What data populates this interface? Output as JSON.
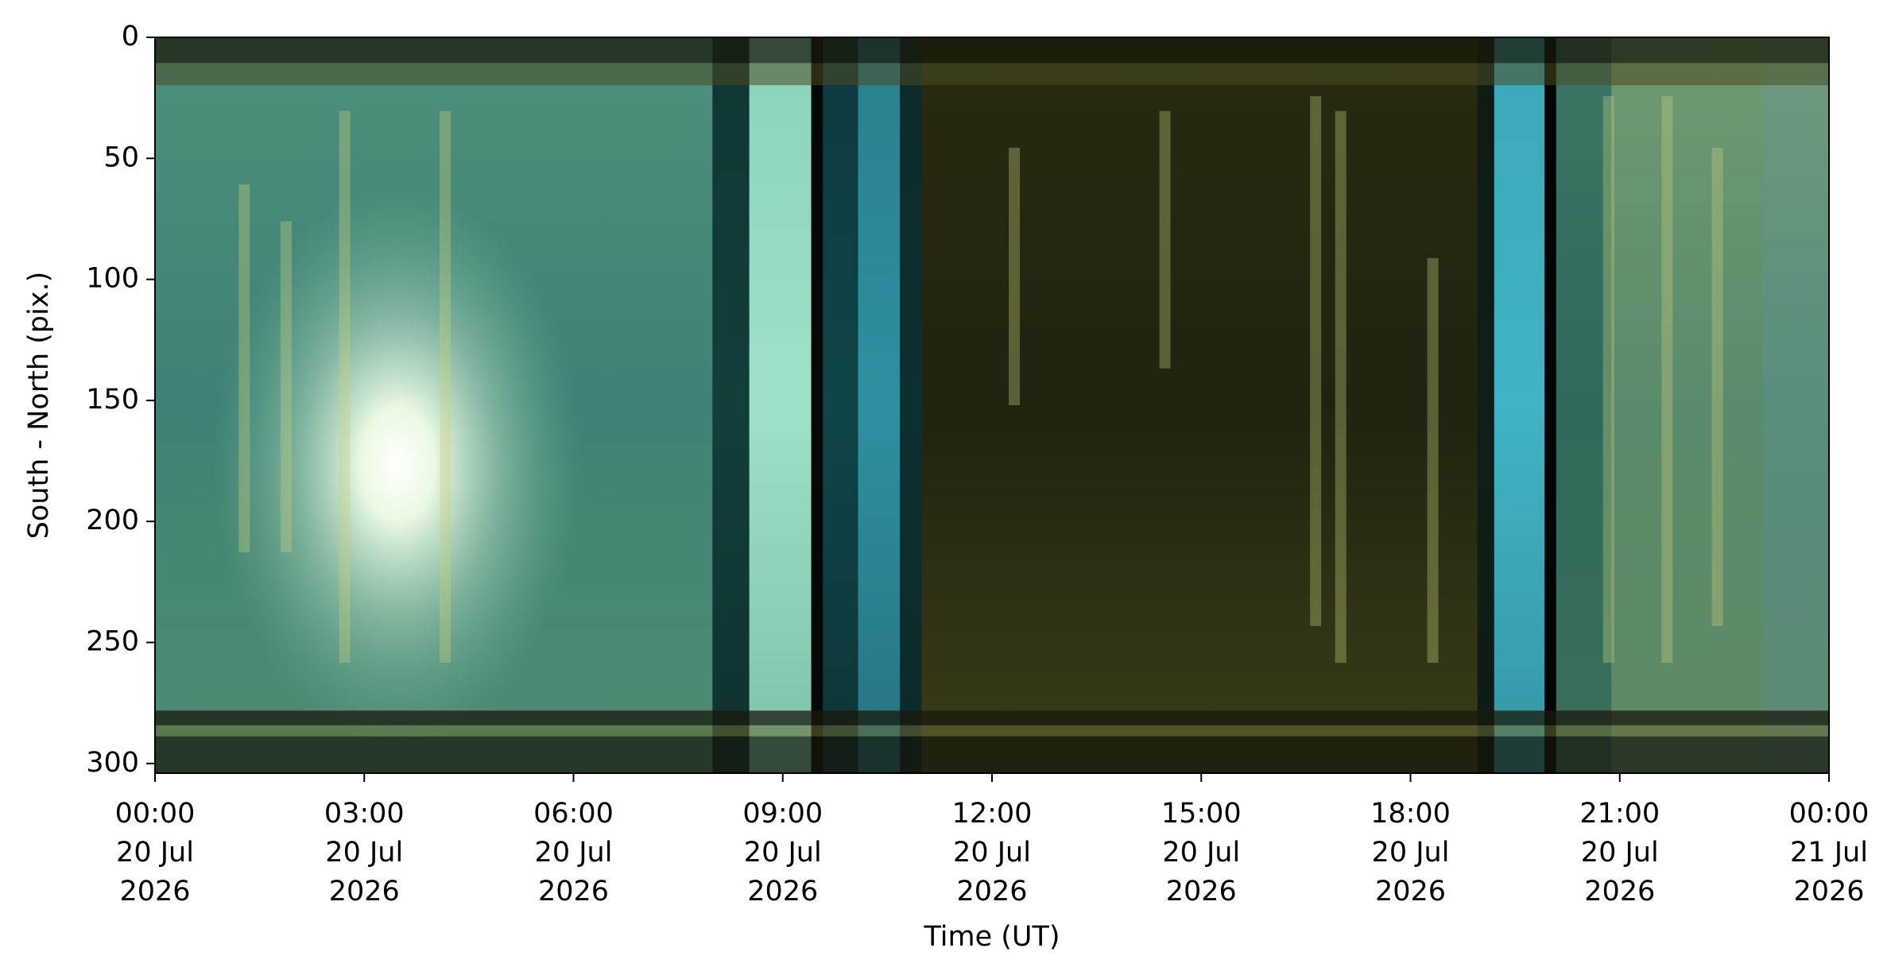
{
  "chart_data": {
    "type": "keogram",
    "xlabel": "Time (UT)",
    "ylabel": "South - North (pix.)",
    "xlim": [
      "2026-07-20T00:00",
      "2026-07-21T00:00"
    ],
    "xticks": [
      {
        "value": "2026-07-20T00:00",
        "label": [
          "00:00",
          "20 Jul",
          "2026"
        ]
      },
      {
        "value": "2026-07-20T03:00",
        "label": [
          "03:00",
          "20 Jul",
          "2026"
        ]
      },
      {
        "value": "2026-07-20T06:00",
        "label": [
          "06:00",
          "20 Jul",
          "2026"
        ]
      },
      {
        "value": "2026-07-20T09:00",
        "label": [
          "09:00",
          "20 Jul",
          "2026"
        ]
      },
      {
        "value": "2026-07-20T12:00",
        "label": [
          "12:00",
          "20 Jul",
          "2026"
        ]
      },
      {
        "value": "2026-07-20T15:00",
        "label": [
          "15:00",
          "20 Jul",
          "2026"
        ]
      },
      {
        "value": "2026-07-20T18:00",
        "label": [
          "18:00",
          "20 Jul",
          "2026"
        ]
      },
      {
        "value": "2026-07-20T21:00",
        "label": [
          "21:00",
          "20 Jul",
          "2026"
        ]
      },
      {
        "value": "2026-07-21T00:00",
        "label": [
          "00:00",
          "21 Jul",
          "2026"
        ]
      }
    ],
    "ylim": [
      304,
      0
    ],
    "yticks": [
      0,
      50,
      100,
      150,
      200,
      250,
      300
    ]
  }
}
